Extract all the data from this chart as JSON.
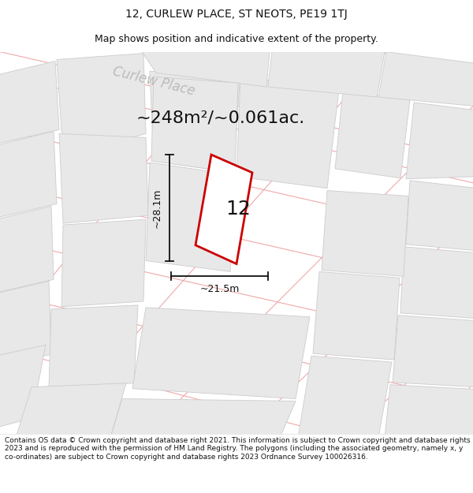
{
  "title_line1": "12, CURLEW PLACE, ST NEOTS, PE19 1TJ",
  "title_line2": "Map shows position and indicative extent of the property.",
  "area_text": "~248m²/~0.061ac.",
  "label_number": "12",
  "dim_width": "~21.5m",
  "dim_height": "~28.1m",
  "street_label": "Curlew Place",
  "footer_text": "Contains OS data © Crown copyright and database right 2021. This information is subject to Crown copyright and database rights 2023 and is reproduced with the permission of HM Land Registry. The polygons (including the associated geometry, namely x, y co-ordinates) are subject to Crown copyright and database rights 2023 Ordnance Survey 100026316.",
  "map_bg": "#ffffff",
  "plot_outline_color": "#cc0000",
  "road_line_color": "#f0a8a8",
  "building_fill": "#e8e8e8",
  "building_stroke": "#cccccc",
  "title_fontsize": 10,
  "subtitle_fontsize": 9,
  "area_fontsize": 16,
  "label_fontsize": 18,
  "dim_fontsize": 9,
  "footer_fontsize": 6.5,
  "street_label_color": "#bbbbbb",
  "street_label_fontsize": 12
}
